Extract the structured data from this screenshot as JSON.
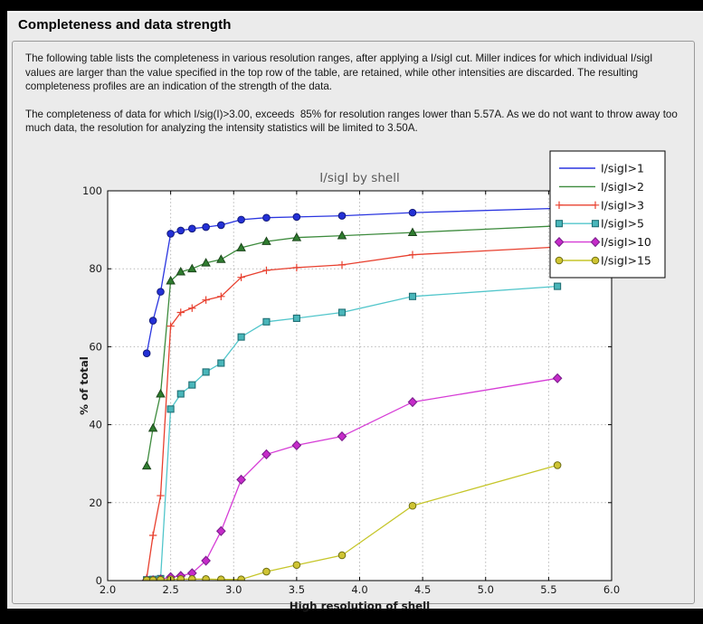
{
  "window_title": "Completeness and data strength",
  "description": {
    "paragraph1": "The following table lists the completeness in various resolution ranges, after applying a I/sigI cut. Miller indices for which individual I/sigI values are larger than the value specified in the top row of the table, are retained, while other intensities are discarded. The resulting completeness profiles are an indication of the strength of the data.",
    "paragraph2": "The completeness of data for which I/sig(I)>3.00, exceeds  85% for resolution ranges lower than 5.57A. As we do not want to throw away too much data, the resolution for analyzing the intensity statistics will be limited to 3.50A."
  },
  "colors": {
    "page_frame": "#000000",
    "panel_background": "#ebebeb",
    "plot_background": "#ffffff",
    "grid": "#b8b8b8",
    "axis_frame": "#000000",
    "chart_title_text": "#595959",
    "tick_text": "#1a1a1a",
    "legend_border": "#000000",
    "legend_background": "#ffffff"
  },
  "chart_data": {
    "type": "line",
    "title": "I/sigI by shell",
    "xlabel": "High resolution of shell",
    "ylabel": "% of total",
    "xlim": [
      2.0,
      6.0
    ],
    "ylim": [
      0,
      100
    ],
    "xticks": [
      2.0,
      2.5,
      3.0,
      3.5,
      4.0,
      4.5,
      5.0,
      5.5,
      6.0
    ],
    "yticks": [
      0,
      20,
      40,
      60,
      80,
      100
    ],
    "grid": true,
    "legend_position": "upper right overlapping plot",
    "x": [
      2.31,
      2.36,
      2.42,
      2.5,
      2.58,
      2.67,
      2.78,
      2.9,
      3.06,
      3.26,
      3.5,
      3.86,
      4.42,
      5.57
    ],
    "series": [
      {
        "name": "I/sigI>1",
        "marker": "circle",
        "color": "#2a35e0",
        "marker_fill": "#2330d6",
        "marker_edge": "#131a7a",
        "values": [
          58.3,
          66.7,
          74.1,
          89.0,
          89.8,
          90.3,
          90.7,
          91.2,
          92.6,
          93.1,
          93.3,
          93.6,
          94.4,
          95.5
        ]
      },
      {
        "name": "I/sigI>2",
        "marker": "triangle",
        "color": "#3d8b3d",
        "marker_fill": "#2f7d2f",
        "marker_edge": "#1b451b",
        "values": [
          29.4,
          39.1,
          47.9,
          76.9,
          79.2,
          80.0,
          81.5,
          82.4,
          85.4,
          87.0,
          88.0,
          88.5,
          89.3,
          91.0
        ]
      },
      {
        "name": "I/sigI>3",
        "marker": "plus",
        "color": "#e8402f",
        "marker_fill": "none",
        "marker_edge": "#e8402f",
        "values": [
          0.7,
          11.6,
          21.8,
          65.3,
          68.8,
          69.9,
          72.0,
          72.9,
          77.8,
          79.6,
          80.3,
          81.0,
          83.6,
          85.6
        ]
      },
      {
        "name": "I/sigI>5",
        "marker": "square",
        "color": "#52c6cb",
        "marker_fill": "#49b6ba",
        "marker_edge": "#1f6f74",
        "values": [
          0.2,
          0.3,
          0.5,
          44.0,
          47.9,
          50.2,
          53.5,
          55.8,
          62.5,
          66.4,
          67.3,
          68.8,
          72.9,
          75.5
        ]
      },
      {
        "name": "I/sigI>10",
        "marker": "diamond",
        "color": "#d63cd6",
        "marker_fill": "#c62bc9",
        "marker_edge": "#7c1f8d",
        "values": [
          0.1,
          0.1,
          0.3,
          0.9,
          1.2,
          1.9,
          5.1,
          12.7,
          25.9,
          32.4,
          34.7,
          37.0,
          45.8,
          51.9
        ]
      },
      {
        "name": "I/sigI>15",
        "marker": "circle",
        "color": "#c6c62a",
        "marker_fill": "#cfc433",
        "marker_edge": "#6d6d12",
        "values": [
          0.1,
          0.1,
          0.2,
          0.3,
          0.4,
          0.4,
          0.4,
          0.3,
          0.3,
          2.3,
          4.0,
          6.5,
          19.2,
          29.6
        ]
      }
    ]
  }
}
